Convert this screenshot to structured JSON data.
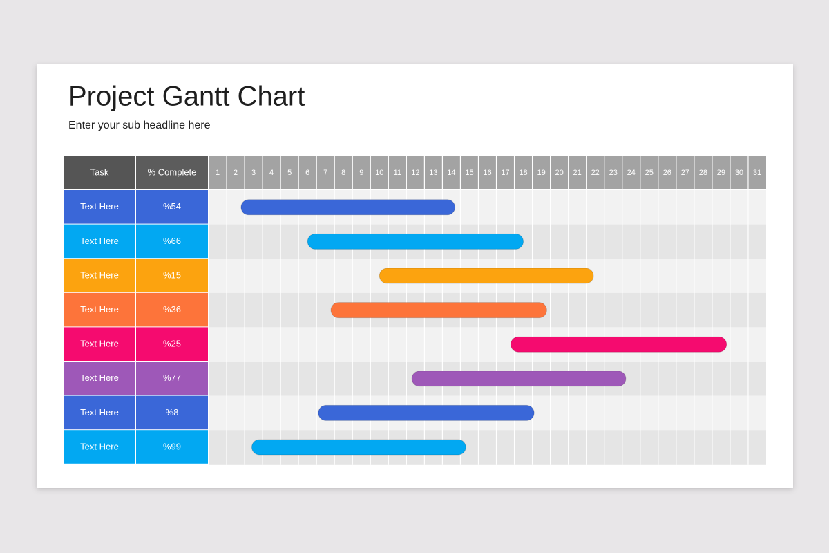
{
  "chart_data": {
    "type": "gantt",
    "title": "Project Gantt Chart",
    "subtitle": "Enter your sub headline here",
    "columns": [
      "Task",
      "% Complete"
    ],
    "xlim": [
      0.5,
      31.5
    ],
    "xticks": [
      1,
      2,
      3,
      4,
      5,
      6,
      7,
      8,
      9,
      10,
      11,
      12,
      13,
      14,
      15,
      16,
      17,
      18,
      19,
      20,
      21,
      22,
      23,
      24,
      25,
      26,
      27,
      28,
      29,
      30,
      31
    ],
    "tasks": [
      {
        "name": "Text Here",
        "complete": "%54",
        "color": "#3a67d8",
        "start": 2.3,
        "end": 14.2
      },
      {
        "name": "Text Here",
        "complete": "%66",
        "color": "#02a8f2",
        "start": 6.0,
        "end": 18.0
      },
      {
        "name": "Text Here",
        "complete": "%15",
        "color": "#fca30f",
        "start": 10.0,
        "end": 21.9
      },
      {
        "name": "Text Here",
        "complete": "%36",
        "color": "#fd743a",
        "start": 7.3,
        "end": 19.3
      },
      {
        "name": "Text Here",
        "complete": "%25",
        "color": "#f50b6f",
        "start": 17.3,
        "end": 29.3
      },
      {
        "name": "Text Here",
        "complete": "%77",
        "color": "#9e58b8",
        "start": 11.8,
        "end": 23.7
      },
      {
        "name": "Text Here",
        "complete": "%8",
        "color": "#3a67d8",
        "start": 6.6,
        "end": 18.6
      },
      {
        "name": "Text Here",
        "complete": "%99",
        "color": "#02a8f2",
        "start": 2.9,
        "end": 14.8
      }
    ]
  }
}
